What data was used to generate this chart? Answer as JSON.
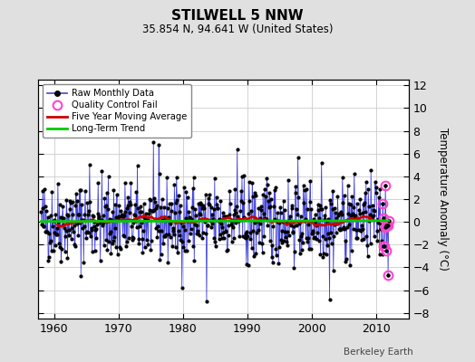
{
  "title": "STILWELL 5 NNW",
  "subtitle": "35.854 N, 94.641 W (United States)",
  "ylabel": "Temperature Anomaly (°C)",
  "watermark": "Berkeley Earth",
  "ylim": [
    -8.5,
    12.5
  ],
  "yticks": [
    -8,
    -6,
    -4,
    -2,
    0,
    2,
    4,
    6,
    8,
    10,
    12
  ],
  "xlim": [
    1957.5,
    2015
  ],
  "xticks": [
    1960,
    1970,
    1980,
    1990,
    2000,
    2010
  ],
  "start_year": 1958,
  "end_year": 2012,
  "qc_start_year": 2011,
  "bg_color": "#e0e0e0",
  "plot_bg_color": "#ffffff",
  "raw_line_color": "#4444dd",
  "raw_marker_color": "#000000",
  "qc_marker_color": "#ff44cc",
  "moving_avg_color": "#cc0000",
  "trend_color": "#00cc00",
  "trend_slope": 0.003,
  "seed": 42
}
